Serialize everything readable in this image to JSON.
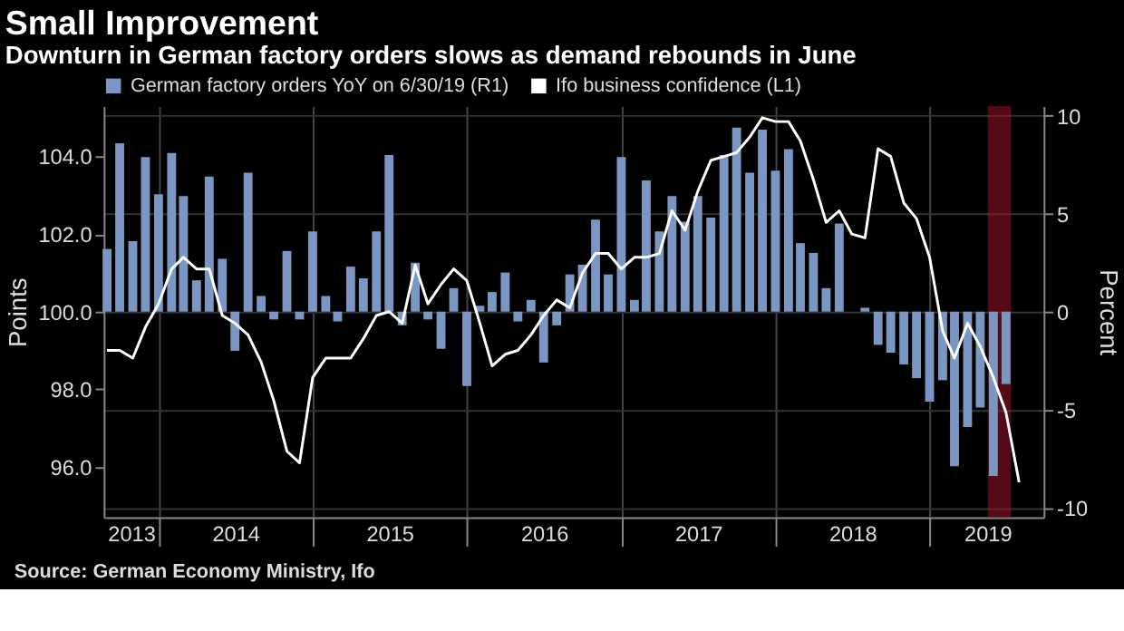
{
  "chart_data": {
    "type": "bar",
    "title": "Small Improvement",
    "subtitle": "Downturn in German factory orders slows as demand rebounds in June",
    "x": [
      "2013-08-31",
      "2013-09-30",
      "2013-10-31",
      "2013-11-30",
      "2013-12-31",
      "2014-01-31",
      "2014-02-28",
      "2014-03-31",
      "2014-04-30",
      "2014-05-31",
      "2014-06-30",
      "2014-07-31",
      "2014-08-31",
      "2014-09-30",
      "2014-10-31",
      "2014-11-30",
      "2014-12-31",
      "2015-01-31",
      "2015-02-28",
      "2015-03-31",
      "2015-04-30",
      "2015-05-31",
      "2015-06-30",
      "2015-07-31",
      "2015-08-31",
      "2015-09-30",
      "2015-10-31",
      "2015-11-30",
      "2015-12-31",
      "2016-01-31",
      "2016-02-29",
      "2016-03-31",
      "2016-04-30",
      "2016-05-31",
      "2016-06-30",
      "2016-07-31",
      "2016-08-31",
      "2016-09-30",
      "2016-10-31",
      "2016-11-30",
      "2016-12-31",
      "2017-01-31",
      "2017-02-28",
      "2017-03-31",
      "2017-04-30",
      "2017-05-31",
      "2017-06-30",
      "2017-07-31",
      "2017-08-31",
      "2017-09-30",
      "2017-10-31",
      "2017-11-30",
      "2017-12-31",
      "2018-01-31",
      "2018-02-28",
      "2018-03-31",
      "2018-04-30",
      "2018-05-31",
      "2018-06-30",
      "2018-07-31",
      "2018-08-31",
      "2018-09-30",
      "2018-10-31",
      "2018-11-30",
      "2018-12-31",
      "2019-01-31",
      "2019-02-28",
      "2019-03-31",
      "2019-04-30",
      "2019-05-31",
      "2019-06-30",
      "2019-07-31"
    ],
    "series": [
      {
        "name": "German factory orders YoY on 6/30/19 (R1)",
        "axis": "y2",
        "color": "#7b96c2",
        "values": [
          3.2,
          8.6,
          3.6,
          7.9,
          6.0,
          8.1,
          5.9,
          1.6,
          6.9,
          2.7,
          -2.0,
          7.1,
          0.8,
          -0.4,
          3.1,
          -0.4,
          4.1,
          0.8,
          -0.5,
          2.3,
          1.7,
          4.1,
          8.0,
          -0.7,
          2.5,
          -0.4,
          -1.9,
          1.2,
          -3.8,
          0.3,
          1.0,
          2.0,
          -0.5,
          0.6,
          -2.6,
          -0.7,
          1.9,
          2.4,
          4.7,
          1.9,
          7.9,
          0.6,
          6.7,
          4.1,
          5.9,
          4.6,
          5.9,
          4.8,
          8.0,
          9.4,
          7.1,
          9.3,
          7.2,
          8.3,
          3.5,
          3.0,
          1.2,
          4.5,
          0.0,
          0.2,
          -1.7,
          -2.1,
          -2.7,
          -3.4,
          -4.6,
          -3.5,
          -7.9,
          -5.9,
          -4.9,
          -8.4,
          -3.7,
          null
        ]
      },
      {
        "name": "Ifo business confidence (L1)",
        "type": "line",
        "color": "#ffffff",
        "values": [
          99.0,
          99.0,
          98.8,
          99.6,
          100.2,
          101.1,
          101.4,
          101.1,
          101.1,
          99.9,
          99.7,
          99.4,
          98.7,
          97.7,
          96.4,
          96.1,
          98.3,
          98.8,
          98.8,
          98.8,
          99.3,
          99.9,
          100.0,
          99.7,
          101.2,
          100.2,
          100.7,
          101.1,
          100.8,
          99.7,
          98.6,
          98.9,
          99.0,
          99.4,
          99.9,
          100.3,
          100.1,
          101.0,
          101.5,
          101.5,
          101.1,
          101.4,
          101.4,
          101.5,
          102.6,
          102.1,
          103.1,
          103.9,
          104.0,
          104.1,
          104.5,
          105.0,
          104.9,
          104.9,
          104.4,
          103.4,
          102.3,
          102.6,
          102.0,
          101.9,
          104.2,
          104.0,
          102.8,
          102.4,
          101.4,
          99.5,
          98.8,
          99.7,
          99.1,
          98.3,
          97.4,
          95.6
        ]
      }
    ],
    "xlim": [
      "2013-08-23",
      "2019-09-27"
    ],
    "xticks": [
      {
        "value": "2013-10-27",
        "label": "2013"
      },
      {
        "value": "2014-01-01",
        "label": null
      },
      {
        "value": "2014-07-01",
        "label": "2014"
      },
      {
        "value": "2015-01-01",
        "label": null
      },
      {
        "value": "2015-07-01",
        "label": "2015"
      },
      {
        "value": "2016-01-01",
        "label": null
      },
      {
        "value": "2016-07-01",
        "label": "2016"
      },
      {
        "value": "2017-01-01",
        "label": null
      },
      {
        "value": "2017-07-01",
        "label": "2017"
      },
      {
        "value": "2018-01-01",
        "label": null
      },
      {
        "value": "2018-07-01",
        "label": "2018"
      },
      {
        "value": "2019-01-01",
        "label": null
      },
      {
        "value": "2019-05-17",
        "label": "2019"
      }
    ],
    "ylim": [
      94.7,
      105.3
    ],
    "yticks": [
      {
        "value": 96,
        "label": "96.0"
      },
      {
        "value": 98,
        "label": "98.0"
      },
      {
        "value": 100,
        "label": "100.0"
      },
      {
        "value": 102,
        "label": "102.0"
      },
      {
        "value": 104,
        "label": "104.0"
      }
    ],
    "y2lim": [
      -10.5,
      10.5
    ],
    "y2ticks": [
      -10,
      -5,
      0,
      5,
      10
    ],
    "ylabel": "Points",
    "y2label": "Percent",
    "bands": [
      {
        "axis": "x",
        "from": "2019-05-18",
        "to": "2019-07-12",
        "color": "#9a1228"
      }
    ],
    "grid": true,
    "legend": "top left",
    "annotations": [
      "Source: German Economy Ministry, Ifo"
    ]
  }
}
